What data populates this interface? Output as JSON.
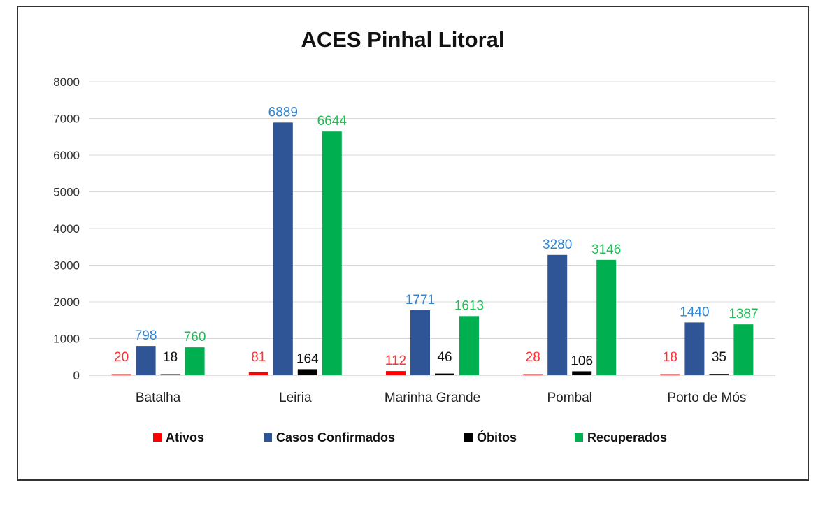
{
  "chart_data": {
    "type": "bar",
    "title": "ACES Pinhal Litoral",
    "xlabel": "",
    "ylabel": "",
    "ylim": [
      0,
      8000
    ],
    "yticks": [
      0,
      1000,
      2000,
      3000,
      4000,
      5000,
      6000,
      7000,
      8000
    ],
    "grid": true,
    "legend_position": "bottom",
    "categories": [
      "Batalha",
      "Leiria",
      "Marinha Grande",
      "Pombal",
      "Porto de Mós"
    ],
    "series": [
      {
        "name": "Ativos",
        "color": "#ff0000",
        "label_color": "#ff3030",
        "values": [
          20,
          81,
          112,
          28,
          18
        ]
      },
      {
        "name": "Casos Confirmados",
        "color": "#2f5597",
        "label_color": "#2e86d6",
        "values": [
          798,
          6889,
          1771,
          3280,
          1440
        ]
      },
      {
        "name": "Óbitos",
        "color": "#000000",
        "label_color": "#111111",
        "values": [
          18,
          164,
          46,
          106,
          35
        ]
      },
      {
        "name": "Recuperados",
        "color": "#00b050",
        "label_color": "#1fbf55",
        "values": [
          760,
          6644,
          1613,
          3146,
          1387
        ]
      }
    ]
  }
}
